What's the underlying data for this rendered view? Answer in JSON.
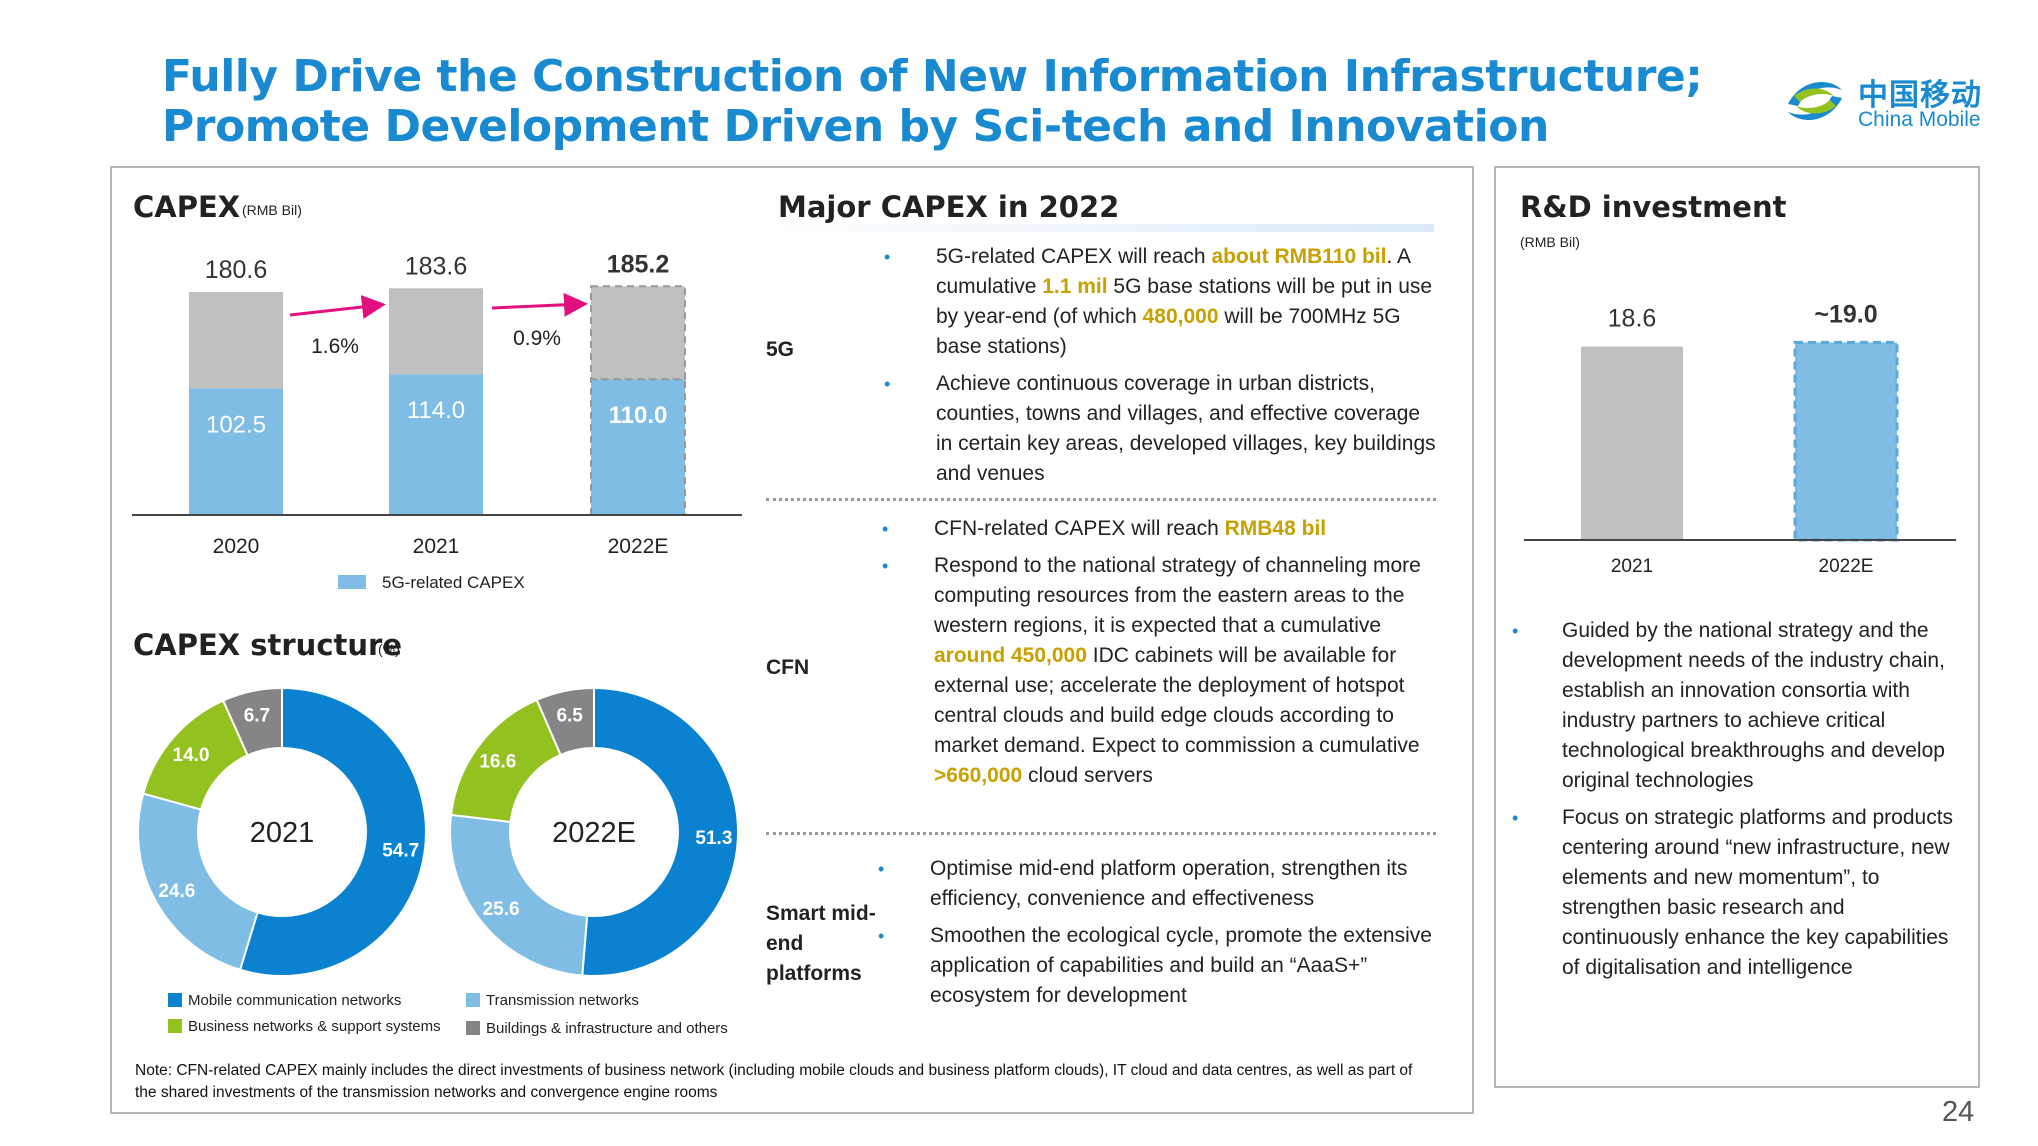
{
  "title": {
    "line1": "Fully Drive the Construction of New Information Infrastructure;",
    "line2": "Promote Development Driven by Sci-tech and Innovation"
  },
  "logo": {
    "cn": "中国移动",
    "en": "China Mobile"
  },
  "capex": {
    "title": "CAPEX",
    "unit": "(RMB Bil)",
    "legend": "5G-related CAPEX",
    "growth": [
      "1.6%",
      "0.9%"
    ]
  },
  "structure": {
    "title": "CAPEX structure",
    "unit": "(%)",
    "legend": [
      "Mobile communication networks",
      "Transmission networks",
      "Business networks & support systems",
      "Buildings & infrastructure and others"
    ]
  },
  "major": {
    "title": "Major CAPEX in 2022",
    "rows": [
      {
        "label": "5G",
        "bullets": [
          {
            "parts": [
              [
                "5G-related CAPEX will reach ",
                false
              ],
              [
                "about RMB110 bil",
                true
              ],
              [
                ". A cumulative ",
                false
              ],
              [
                "1.1 mil",
                true
              ],
              [
                " 5G base stations will be put in use by year-end (of which ",
                false
              ],
              [
                "480,000",
                true
              ],
              [
                " will be 700MHz 5G base stations)",
                false
              ]
            ]
          },
          {
            "parts": [
              [
                "Achieve continuous coverage in urban districts, counties, towns and villages, and effective coverage in certain key areas, developed villages, key buildings and venues",
                false
              ]
            ]
          }
        ]
      },
      {
        "label": "CFN",
        "bullets": [
          {
            "parts": [
              [
                "CFN-related CAPEX will reach ",
                false
              ],
              [
                "RMB48 bil",
                true
              ]
            ]
          },
          {
            "parts": [
              [
                "Respond to the national strategy of channeling more computing resources from the eastern areas to the western regions, it is expected that a cumulative ",
                false
              ],
              [
                "around 450,000",
                true
              ],
              [
                " IDC cabinets will be available for external use; accelerate the deployment of hotspot central clouds and build edge clouds according to market demand. Expect to commission a cumulative ",
                false
              ],
              [
                ">660,000",
                true
              ],
              [
                " cloud servers",
                false
              ]
            ]
          }
        ]
      },
      {
        "label": "Smart mid-end platforms",
        "bullets": [
          {
            "parts": [
              [
                "Optimise mid-end platform operation, strengthen its efficiency, convenience and effectiveness",
                false
              ]
            ]
          },
          {
            "parts": [
              [
                "Smoothen the ecological cycle, promote the extensive application of capabilities and build an “AaaS+”  ecosystem for development",
                false
              ]
            ]
          }
        ]
      }
    ]
  },
  "note": "Note: CFN-related CAPEX mainly includes the direct investments of business network (including mobile clouds and business platform clouds), IT cloud and data centres, as well as part of the shared investments of the transmission networks and convergence engine rooms",
  "rd": {
    "title": "R&D investment",
    "unit": "(RMB Bil)",
    "bullets": [
      "Guided by the national strategy and the development needs of the industry chain, establish an innovation consortia with industry partners to achieve critical technological breakthroughs and develop original technologies",
      "Focus on strategic platforms and products centering around “new infrastructure, new elements and new momentum”, to strengthen basic research and continuously enhance the key capabilities of digitalisation and intelligence"
    ]
  },
  "page_number": "24",
  "colors": {
    "brand": "#1a8ad0",
    "grey": "#c0c0c0",
    "lightblue": "#7fbde4",
    "green": "#93c11f",
    "darkgrey": "#858585",
    "highlight": "#c8a000"
  },
  "chart_data": [
    {
      "type": "bar",
      "title": "CAPEX",
      "categories": [
        "2020",
        "2021",
        "2022E"
      ],
      "series": [
        {
          "name": "5G-related CAPEX",
          "values": [
            102.5,
            114.0,
            110.0
          ]
        }
      ],
      "totals": [
        180.6,
        183.6,
        185.2
      ],
      "total_labels": [
        "180.6",
        "183.6",
        "185.2"
      ],
      "value_labels": [
        "102.5",
        "114.0",
        "110.0"
      ],
      "growth_labels": [
        "1.6%",
        "0.9%"
      ],
      "estimate_index": 2
    },
    {
      "type": "pie",
      "subtype": "donut",
      "center_label": "2021",
      "categories": [
        "Mobile communication networks",
        "Transmission networks",
        "Business networks & support systems",
        "Buildings & infrastructure and others"
      ],
      "values": [
        54.7,
        24.6,
        14.0,
        6.7
      ],
      "labels": [
        "54.7",
        "24.6",
        "14.0",
        "6.7"
      ]
    },
    {
      "type": "pie",
      "subtype": "donut",
      "center_label": "2022E",
      "categories": [
        "Mobile communication networks",
        "Transmission networks",
        "Business networks & support systems",
        "Buildings & infrastructure and others"
      ],
      "values": [
        51.3,
        25.6,
        16.6,
        6.5
      ],
      "labels": [
        "51.3",
        "25.6",
        "16.6",
        "6.5"
      ]
    },
    {
      "type": "bar",
      "title": "R&D investment",
      "categories": [
        "2021",
        "2022E"
      ],
      "values": [
        18.6,
        19.0
      ],
      "labels": [
        "18.6",
        "~19.0"
      ],
      "estimate_index": 1
    }
  ]
}
